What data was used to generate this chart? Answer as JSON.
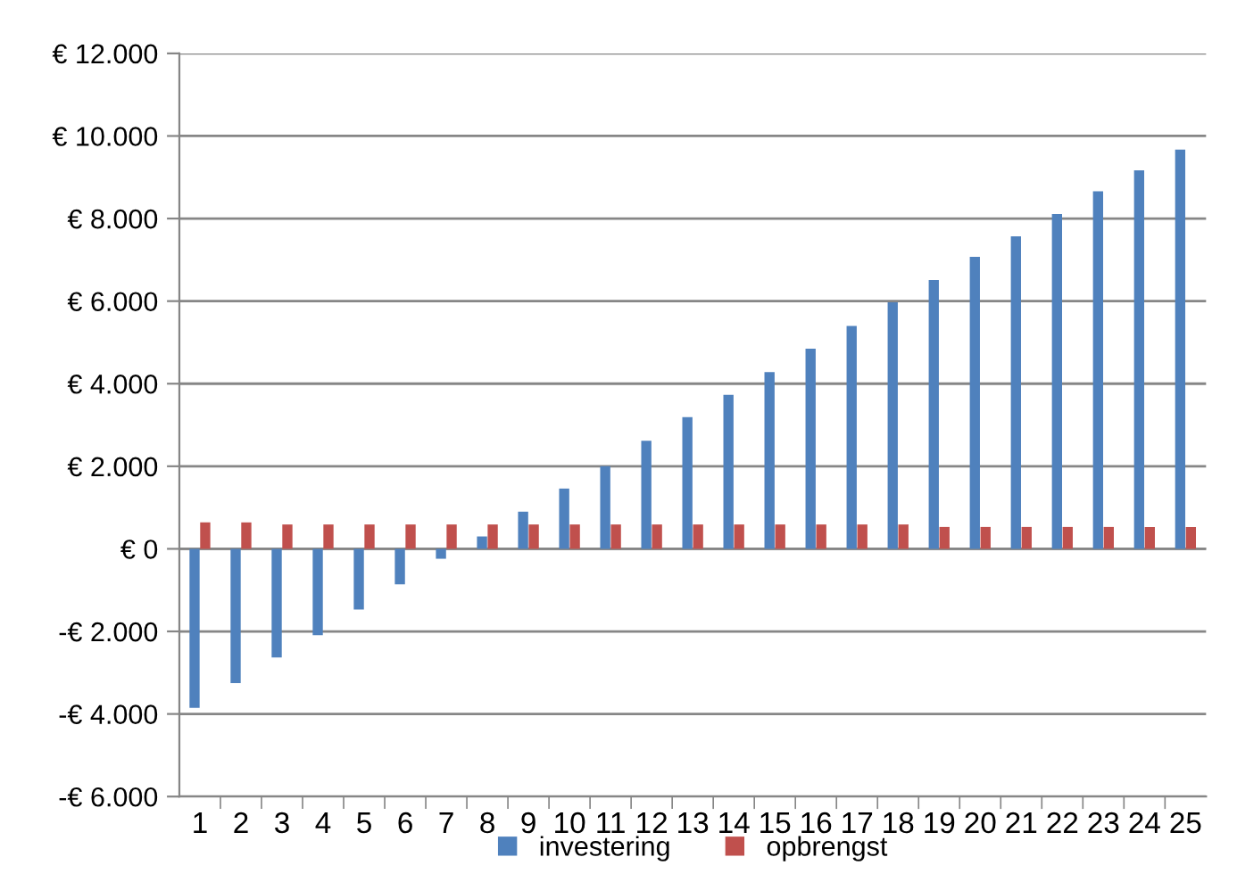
{
  "chart_data": {
    "type": "bar",
    "categories": [
      "1",
      "2",
      "3",
      "4",
      "5",
      "6",
      "7",
      "8",
      "9",
      "10",
      "11",
      "12",
      "13",
      "14",
      "15",
      "16",
      "17",
      "18",
      "19",
      "20",
      "21",
      "22",
      "23",
      "24",
      "25"
    ],
    "series": [
      {
        "name": "investering",
        "color": "#4f81bd",
        "values": [
          -3850,
          -3250,
          -2630,
          -2090,
          -1470,
          -860,
          -240,
          300,
          900,
          1460,
          2000,
          2620,
          3190,
          3730,
          4280,
          4850,
          5400,
          5970,
          6510,
          7070,
          7570,
          8110,
          8660,
          9170,
          9670
        ]
      },
      {
        "name": "opbrengst",
        "color": "#c0504d",
        "values": [
          640,
          640,
          590,
          590,
          590,
          590,
          590,
          590,
          590,
          590,
          590,
          590,
          590,
          590,
          590,
          590,
          590,
          590,
          530,
          530,
          530,
          530,
          530,
          530,
          530
        ]
      }
    ],
    "ylim": [
      -6000,
      12000
    ],
    "yticks": [
      {
        "value": -6000,
        "label": "-€ 6.000"
      },
      {
        "value": -4000,
        "label": "-€ 4.000"
      },
      {
        "value": -2000,
        "label": "-€ 2.000"
      },
      {
        "value": 0,
        "label": "€ 0"
      },
      {
        "value": 2000,
        "label": "€ 2.000"
      },
      {
        "value": 4000,
        "label": "€ 4.000"
      },
      {
        "value": 6000,
        "label": "€ 6.000"
      },
      {
        "value": 8000,
        "label": "€ 8.000"
      },
      {
        "value": 10000,
        "label": "€ 10.000"
      },
      {
        "value": 12000,
        "label": "€ 12.000"
      }
    ],
    "grid": "y",
    "legend": "bottom"
  }
}
